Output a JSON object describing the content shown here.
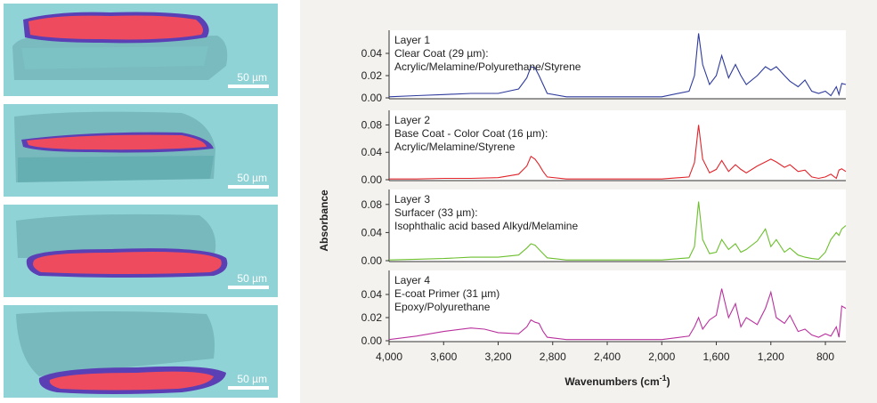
{
  "images": [
    {
      "scale_label": "50 µm"
    },
    {
      "scale_label": "50 µm"
    },
    {
      "scale_label": "50 µm"
    },
    {
      "scale_label": "50 µm"
    }
  ],
  "colors": {
    "image_bg": "#8fd3d7",
    "chart_bg": "#f3f2ef",
    "plot_bg": "#ffffff",
    "layer_colors": [
      "#2e3a9c",
      "#e0242a",
      "#6cbf2e",
      "#b9319e"
    ]
  },
  "chart_data": {
    "type": "line",
    "xlabel_main": "Wavenumbers (cm",
    "xlabel_sup": "-1",
    "xlabel_end": ")",
    "ylabel": "Absorbance",
    "xlim": [
      4000,
      650
    ],
    "x_reversed": true,
    "x_ticks": [
      4000,
      3600,
      3200,
      2800,
      2400,
      2000,
      1600,
      1200,
      800
    ],
    "x_tick_labels": [
      "4,000",
      "3,600",
      "3,200",
      "2,800",
      "2,400",
      "2,000",
      "1,600",
      "1,200",
      "800"
    ],
    "panels": [
      {
        "title_lines": [
          "Layer 1",
          "Clear Coat (29 µm):",
          "Acrylic/Melamine/Polyurethane/Styrene"
        ],
        "color": "#2e3a9c",
        "ylim": [
          0,
          0.06
        ],
        "y_ticks": [
          0,
          0.02,
          0.04
        ],
        "y_tick_labels": [
          "0.00",
          "0.02",
          "0.04"
        ],
        "x": [
          4000,
          3800,
          3600,
          3400,
          3200,
          3050,
          2990,
          2960,
          2930,
          2900,
          2870,
          2840,
          2700,
          2400,
          2000,
          1800,
          1760,
          1730,
          1700,
          1650,
          1600,
          1560,
          1510,
          1460,
          1420,
          1380,
          1300,
          1240,
          1200,
          1160,
          1100,
          1060,
          1000,
          950,
          900,
          850,
          800,
          760,
          720,
          700,
          680,
          650
        ],
        "y": [
          0.001,
          0.002,
          0.003,
          0.004,
          0.004,
          0.008,
          0.018,
          0.028,
          0.027,
          0.02,
          0.012,
          0.004,
          0.001,
          0.001,
          0.001,
          0.006,
          0.02,
          0.058,
          0.03,
          0.012,
          0.02,
          0.038,
          0.018,
          0.03,
          0.02,
          0.012,
          0.02,
          0.028,
          0.025,
          0.028,
          0.02,
          0.015,
          0.01,
          0.016,
          0.006,
          0.004,
          0.006,
          0.002,
          0.01,
          0.003,
          0.013,
          0.012
        ]
      },
      {
        "title_lines": [
          "Layer 2",
          "Base Coat - Color Coat (16 µm):",
          "Acrylic/Melamine/Styrene"
        ],
        "color": "#e0242a",
        "ylim": [
          0,
          0.1
        ],
        "y_ticks": [
          0,
          0.04,
          0.08
        ],
        "y_tick_labels": [
          "0.00",
          "0.04",
          "0.08"
        ],
        "x": [
          4000,
          3800,
          3600,
          3400,
          3200,
          3050,
          2990,
          2960,
          2930,
          2900,
          2870,
          2840,
          2700,
          2400,
          2000,
          1800,
          1760,
          1730,
          1700,
          1650,
          1600,
          1560,
          1510,
          1460,
          1420,
          1380,
          1300,
          1240,
          1200,
          1160,
          1100,
          1060,
          1000,
          950,
          900,
          850,
          800,
          760,
          720,
          700,
          680,
          650
        ],
        "y": [
          0.001,
          0.001,
          0.002,
          0.002,
          0.003,
          0.008,
          0.02,
          0.034,
          0.03,
          0.022,
          0.012,
          0.004,
          0.001,
          0.001,
          0.001,
          0.004,
          0.025,
          0.08,
          0.03,
          0.01,
          0.015,
          0.028,
          0.012,
          0.022,
          0.015,
          0.01,
          0.02,
          0.026,
          0.03,
          0.026,
          0.018,
          0.022,
          0.012,
          0.014,
          0.004,
          0.002,
          0.004,
          0.008,
          0.002,
          0.014,
          0.016,
          0.012
        ]
      },
      {
        "title_lines": [
          "Layer 3",
          "Surfacer (33 µm):",
          "Isophthalic acid based Alkyd/Melamine"
        ],
        "color": "#6cbf2e",
        "ylim": [
          0,
          0.1
        ],
        "y_ticks": [
          0,
          0.04,
          0.08
        ],
        "y_tick_labels": [
          "0.00",
          "0.04",
          "0.08"
        ],
        "x": [
          4000,
          3800,
          3600,
          3400,
          3200,
          3050,
          2990,
          2960,
          2930,
          2900,
          2870,
          2840,
          2700,
          2400,
          2000,
          1800,
          1760,
          1730,
          1700,
          1650,
          1600,
          1560,
          1510,
          1460,
          1420,
          1380,
          1300,
          1240,
          1200,
          1160,
          1100,
          1060,
          1000,
          950,
          900,
          850,
          800,
          760,
          720,
          700,
          680,
          650
        ],
        "y": [
          0.001,
          0.002,
          0.003,
          0.005,
          0.005,
          0.008,
          0.018,
          0.024,
          0.022,
          0.016,
          0.01,
          0.004,
          0.001,
          0.001,
          0.001,
          0.004,
          0.02,
          0.084,
          0.03,
          0.01,
          0.012,
          0.03,
          0.016,
          0.024,
          0.012,
          0.016,
          0.028,
          0.045,
          0.02,
          0.03,
          0.012,
          0.018,
          0.008,
          0.005,
          0.003,
          0.002,
          0.012,
          0.03,
          0.04,
          0.036,
          0.045,
          0.05
        ]
      },
      {
        "title_lines": [
          "Layer 4",
          "E-coat Primer (31 µm)",
          "Epoxy/Polyurethane"
        ],
        "color": "#b9319e",
        "ylim": [
          0,
          0.06
        ],
        "y_ticks": [
          0,
          0.02,
          0.04
        ],
        "y_tick_labels": [
          "0.00",
          "0.02",
          "0.04"
        ],
        "x": [
          4000,
          3800,
          3600,
          3400,
          3300,
          3200,
          3050,
          2990,
          2960,
          2930,
          2900,
          2870,
          2840,
          2700,
          2400,
          2000,
          1800,
          1760,
          1730,
          1700,
          1650,
          1600,
          1560,
          1510,
          1460,
          1420,
          1380,
          1300,
          1240,
          1200,
          1160,
          1100,
          1060,
          1000,
          950,
          900,
          850,
          800,
          760,
          720,
          700,
          680,
          650
        ],
        "y": [
          0.001,
          0.004,
          0.008,
          0.011,
          0.01,
          0.007,
          0.006,
          0.012,
          0.018,
          0.016,
          0.015,
          0.008,
          0.003,
          0.001,
          0.001,
          0.001,
          0.004,
          0.012,
          0.02,
          0.01,
          0.018,
          0.022,
          0.045,
          0.02,
          0.032,
          0.012,
          0.02,
          0.014,
          0.028,
          0.042,
          0.02,
          0.015,
          0.022,
          0.008,
          0.01,
          0.005,
          0.003,
          0.006,
          0.004,
          0.012,
          0.003,
          0.03,
          0.028
        ]
      }
    ]
  }
}
